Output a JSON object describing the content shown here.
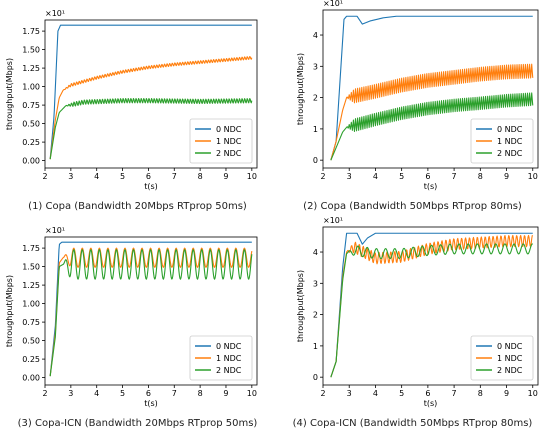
{
  "figure": {
    "colors": {
      "axis": "#000000",
      "legend_border": "#cccccc"
    },
    "captions": [
      "(1) Copa (Bandwidth 20Mbps RTprop 50ms)",
      "(2) Copa (Bandwidth 50Mbps RTprop 80ms)",
      "(3) Copa-ICN (Bandwidth 20Mbps RTprop 50ms)",
      "(4) Copa-ICN (Bandwidth 50Mbps RTprop 80ms)"
    ]
  },
  "chart_data": [
    {
      "type": "line",
      "title": "",
      "xlabel": "t(s)",
      "ylabel": "throughput(Mbps)",
      "exponent_label": "×10¹",
      "xlim": [
        2.0,
        10.2
      ],
      "ylim": [
        -0.1,
        1.9
      ],
      "xticks": [
        2,
        3,
        4,
        5,
        6,
        7,
        8,
        9,
        10
      ],
      "yticks": [
        0.0,
        0.25,
        0.5,
        0.75,
        1.0,
        1.25,
        1.5,
        1.75
      ],
      "ytick_labels": [
        "0.00",
        "0.25",
        "0.50",
        "0.75",
        "1.00",
        "1.25",
        "1.50",
        "1.75"
      ],
      "legend_position": "lower-right",
      "series": [
        {
          "name": "0 NDC",
          "color": "#1f77b4",
          "osc_amp": 0,
          "osc_period": 0.1,
          "points": [
            [
              2.2,
              0.02
            ],
            [
              2.35,
              0.6
            ],
            [
              2.5,
              1.75
            ],
            [
              2.6,
              1.83
            ],
            [
              2.75,
              1.83
            ],
            [
              10,
              1.83
            ]
          ]
        },
        {
          "name": "1 NDC",
          "color": "#ff7f0e",
          "osc_amp": 0.02,
          "osc_period": 0.1,
          "points": [
            [
              2.2,
              0.02
            ],
            [
              2.4,
              0.55
            ],
            [
              2.55,
              0.85
            ],
            [
              2.7,
              0.95
            ],
            [
              3.0,
              1.02
            ],
            [
              4.0,
              1.12
            ],
            [
              5.0,
              1.2
            ],
            [
              6.0,
              1.26
            ],
            [
              7.0,
              1.3
            ],
            [
              8.0,
              1.33
            ],
            [
              9.0,
              1.36
            ],
            [
              10,
              1.39
            ]
          ]
        },
        {
          "name": "2 NDC",
          "color": "#2ca02c",
          "osc_amp": 0.03,
          "osc_period": 0.1,
          "points": [
            [
              2.2,
              0.02
            ],
            [
              2.4,
              0.45
            ],
            [
              2.55,
              0.65
            ],
            [
              2.8,
              0.74
            ],
            [
              3.5,
              0.79
            ],
            [
              5.0,
              0.81
            ],
            [
              6.0,
              0.81
            ],
            [
              8.0,
              0.8
            ],
            [
              10,
              0.81
            ]
          ]
        }
      ]
    },
    {
      "type": "line",
      "title": "",
      "xlabel": "t(s)",
      "ylabel": "throughput(Mbps)",
      "exponent_label": "×10¹",
      "xlim": [
        2.0,
        10.2
      ],
      "ylim": [
        -0.25,
        4.8
      ],
      "xticks": [
        2,
        3,
        4,
        5,
        6,
        7,
        8,
        9,
        10
      ],
      "yticks": [
        0,
        1,
        2,
        3,
        4
      ],
      "ytick_labels": [
        "0",
        "1",
        "2",
        "3",
        "4"
      ],
      "legend_position": "lower-right",
      "series": [
        {
          "name": "0 NDC",
          "color": "#1f77b4",
          "osc_amp": 0,
          "osc_period": 0.1,
          "points": [
            [
              2.3,
              0.0
            ],
            [
              2.5,
              0.6
            ],
            [
              2.8,
              4.5
            ],
            [
              2.9,
              4.6
            ],
            [
              3.3,
              4.6
            ],
            [
              3.5,
              4.35
            ],
            [
              3.8,
              4.45
            ],
            [
              4.3,
              4.55
            ],
            [
              4.8,
              4.6
            ],
            [
              10,
              4.6
            ]
          ]
        },
        {
          "name": "1 NDC",
          "color": "#ff7f0e",
          "osc_amp": 0.22,
          "osc_period": 0.08,
          "points": [
            [
              2.3,
              0.0
            ],
            [
              2.5,
              0.6
            ],
            [
              2.75,
              1.6
            ],
            [
              2.9,
              2.0
            ],
            [
              4.0,
              2.2
            ],
            [
              5.0,
              2.4
            ],
            [
              6.0,
              2.55
            ],
            [
              7.0,
              2.65
            ],
            [
              8.0,
              2.75
            ],
            [
              9.0,
              2.82
            ],
            [
              10,
              2.85
            ]
          ]
        },
        {
          "name": "2 NDC",
          "color": "#2ca02c",
          "osc_amp": 0.2,
          "osc_period": 0.08,
          "points": [
            [
              2.3,
              0.0
            ],
            [
              2.5,
              0.4
            ],
            [
              2.75,
              0.9
            ],
            [
              2.9,
              1.05
            ],
            [
              4.0,
              1.3
            ],
            [
              5.0,
              1.5
            ],
            [
              6.0,
              1.65
            ],
            [
              7.0,
              1.75
            ],
            [
              8.0,
              1.82
            ],
            [
              9.0,
              1.9
            ],
            [
              10,
              1.95
            ]
          ]
        }
      ]
    },
    {
      "type": "line",
      "title": "",
      "xlabel": "t(s)",
      "ylabel": "throughput(Mbps)",
      "exponent_label": "×10¹",
      "xlim": [
        2.0,
        10.2
      ],
      "ylim": [
        -0.1,
        1.9
      ],
      "xticks": [
        2,
        3,
        4,
        5,
        6,
        7,
        8,
        9,
        10
      ],
      "yticks": [
        0.0,
        0.25,
        0.5,
        0.75,
        1.0,
        1.25,
        1.5,
        1.75
      ],
      "ytick_labels": [
        "0.00",
        "0.25",
        "0.50",
        "0.75",
        "1.00",
        "1.25",
        "1.50",
        "1.75"
      ],
      "legend_position": "lower-right",
      "series": [
        {
          "name": "0 NDC",
          "color": "#1f77b4",
          "osc_amp": 0,
          "osc_period": 0.1,
          "points": [
            [
              2.2,
              0.02
            ],
            [
              2.4,
              0.7
            ],
            [
              2.55,
              1.8
            ],
            [
              2.65,
              1.83
            ],
            [
              10,
              1.83
            ]
          ]
        },
        {
          "name": "1 NDC",
          "color": "#ff7f0e",
          "osc_amp": 0.13,
          "osc_period": 0.33,
          "points": [
            [
              2.2,
              0.02
            ],
            [
              2.4,
              0.6
            ],
            [
              2.55,
              1.55
            ],
            [
              2.7,
              1.62
            ],
            [
              10,
              1.62
            ]
          ]
        },
        {
          "name": "2 NDC",
          "color": "#2ca02c",
          "osc_amp": 0.2,
          "osc_period": 0.33,
          "points": [
            [
              2.2,
              0.02
            ],
            [
              2.4,
              0.55
            ],
            [
              2.55,
              1.5
            ],
            [
              2.7,
              1.53
            ],
            [
              10,
              1.53
            ]
          ]
        }
      ]
    },
    {
      "type": "line",
      "title": "",
      "xlabel": "t(s)",
      "ylabel": "throughput(Mbps)",
      "exponent_label": "×10¹",
      "xlim": [
        2.0,
        10.2
      ],
      "ylim": [
        -0.25,
        4.8
      ],
      "xticks": [
        2,
        3,
        4,
        5,
        6,
        7,
        8,
        9,
        10
      ],
      "yticks": [
        0,
        1,
        2,
        3,
        4
      ],
      "ytick_labels": [
        "0",
        "1",
        "2",
        "3",
        "4"
      ],
      "legend_position": "lower-right",
      "series": [
        {
          "name": "0 NDC",
          "color": "#1f77b4",
          "osc_amp": 0,
          "osc_period": 0.1,
          "points": [
            [
              2.3,
              0.0
            ],
            [
              2.5,
              0.5
            ],
            [
              2.75,
              3.5
            ],
            [
              2.9,
              4.6
            ],
            [
              3.3,
              4.6
            ],
            [
              3.5,
              4.25
            ],
            [
              3.7,
              4.45
            ],
            [
              4.0,
              4.6
            ],
            [
              10,
              4.6
            ]
          ]
        },
        {
          "name": "1 NDC",
          "color": "#ff7f0e",
          "osc_amp": 0.18,
          "osc_period": 0.15,
          "points": [
            [
              2.3,
              0.0
            ],
            [
              2.5,
              0.5
            ],
            [
              2.75,
              3.2
            ],
            [
              2.9,
              4.0
            ],
            [
              3.2,
              4.15
            ],
            [
              4.0,
              3.8
            ],
            [
              5.0,
              3.85
            ],
            [
              6.0,
              4.1
            ],
            [
              7.0,
              4.25
            ],
            [
              8.0,
              4.3
            ],
            [
              9.0,
              4.35
            ],
            [
              10,
              4.35
            ]
          ]
        },
        {
          "name": "2 NDC",
          "color": "#2ca02c",
          "osc_amp": 0.16,
          "osc_period": 0.35,
          "points": [
            [
              2.3,
              0.0
            ],
            [
              2.5,
              0.5
            ],
            [
              2.75,
              3.1
            ],
            [
              2.9,
              3.95
            ],
            [
              3.2,
              4.05
            ],
            [
              4.0,
              3.95
            ],
            [
              5.0,
              3.95
            ],
            [
              6.0,
              4.05
            ],
            [
              7.0,
              4.1
            ],
            [
              8.0,
              4.1
            ],
            [
              9.0,
              4.1
            ],
            [
              10,
              4.1
            ]
          ]
        }
      ]
    }
  ]
}
